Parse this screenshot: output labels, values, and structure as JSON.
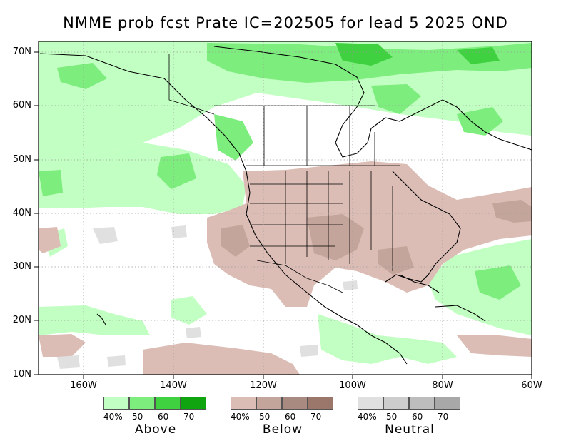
{
  "title": "NMME prob fcst Prate IC=202505 for lead 5 2025 OND",
  "lat_labels": [
    "70N",
    "60N",
    "50N",
    "40N",
    "30N",
    "20N",
    "10N"
  ],
  "lon_labels": [
    "160W",
    "140W",
    "120W",
    "100W",
    "80W",
    "60W"
  ],
  "legends": [
    {
      "name": "Above",
      "ticks": [
        "40%",
        "50",
        "60",
        "70"
      ],
      "colors": [
        "#c2ffc2",
        "#7ded7d",
        "#3fd13f",
        "#10a410"
      ]
    },
    {
      "name": "Below",
      "ticks": [
        "40%",
        "50",
        "60",
        "70"
      ],
      "colors": [
        "#dbbdb5",
        "#c4a59b",
        "#a98a80",
        "#9a766b"
      ]
    },
    {
      "name": "Neutral",
      "ticks": [
        "40%",
        "50",
        "60",
        "70"
      ],
      "colors": [
        "#e0e0e0",
        "#cdcdcd",
        "#bdbdbd",
        "#a8a8a8"
      ]
    }
  ],
  "colors": {
    "above_light": "#c2ffc2",
    "above_mid": "#7ded7d",
    "below": "#dbbdb5",
    "below_mid": "#c4a59b",
    "neutral": "#e0e0e0"
  }
}
